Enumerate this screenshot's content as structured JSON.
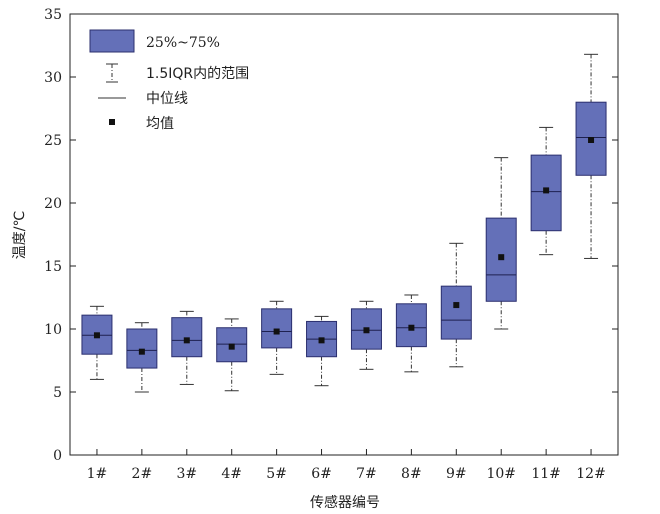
{
  "chart_data": {
    "type": "box",
    "xlabel": "传感器编号",
    "ylabel": "温度/℃",
    "ylim": [
      0,
      35
    ],
    "yticks": [
      0,
      5,
      10,
      15,
      20,
      25,
      30,
      35
    ],
    "categories": [
      "1#",
      "2#",
      "3#",
      "4#",
      "5#",
      "6#",
      "7#",
      "8#",
      "9#",
      "10#",
      "11#",
      "12#"
    ],
    "boxes": [
      {
        "whisker_low": 6.0,
        "q1": 8.0,
        "median": 9.5,
        "q3": 11.1,
        "whisker_high": 11.8,
        "mean": 9.5
      },
      {
        "whisker_low": 5.0,
        "q1": 6.9,
        "median": 8.3,
        "q3": 10.0,
        "whisker_high": 10.5,
        "mean": 8.2
      },
      {
        "whisker_low": 5.6,
        "q1": 7.8,
        "median": 9.1,
        "q3": 10.9,
        "whisker_high": 11.4,
        "mean": 9.1
      },
      {
        "whisker_low": 5.1,
        "q1": 7.4,
        "median": 8.8,
        "q3": 10.1,
        "whisker_high": 10.8,
        "mean": 8.6
      },
      {
        "whisker_low": 6.4,
        "q1": 8.5,
        "median": 9.8,
        "q3": 11.6,
        "whisker_high": 12.2,
        "mean": 9.8
      },
      {
        "whisker_low": 5.5,
        "q1": 7.8,
        "median": 9.2,
        "q3": 10.6,
        "whisker_high": 11.0,
        "mean": 9.1
      },
      {
        "whisker_low": 6.8,
        "q1": 8.4,
        "median": 9.9,
        "q3": 11.6,
        "whisker_high": 12.2,
        "mean": 9.9
      },
      {
        "whisker_low": 6.6,
        "q1": 8.6,
        "median": 10.1,
        "q3": 12.0,
        "whisker_high": 12.7,
        "mean": 10.1
      },
      {
        "whisker_low": 7.0,
        "q1": 9.2,
        "median": 10.7,
        "q3": 13.4,
        "whisker_high": 16.8,
        "mean": 11.9
      },
      {
        "whisker_low": 10.0,
        "q1": 12.2,
        "median": 14.3,
        "q3": 18.8,
        "whisker_high": 23.6,
        "mean": 15.7
      },
      {
        "whisker_low": 15.9,
        "q1": 17.8,
        "median": 20.9,
        "q3": 23.8,
        "whisker_high": 26.0,
        "mean": 21.0
      },
      {
        "whisker_low": 15.6,
        "q1": 22.2,
        "median": 25.2,
        "q3": 28.0,
        "whisker_high": 31.8,
        "mean": 25.0
      }
    ],
    "legend": {
      "placement": "top-left",
      "items": [
        {
          "key": "box",
          "label": "25%~75%"
        },
        {
          "key": "whisker",
          "label": "1.5IQR内的范围"
        },
        {
          "key": "median",
          "label": "中位线"
        },
        {
          "key": "mean",
          "label": "均值"
        }
      ]
    },
    "colors": {
      "box_fill": "#6470B8",
      "box_stroke": "#2B2F6E",
      "axis": "#222222",
      "mean_marker": "#111111"
    },
    "grid": false
  }
}
